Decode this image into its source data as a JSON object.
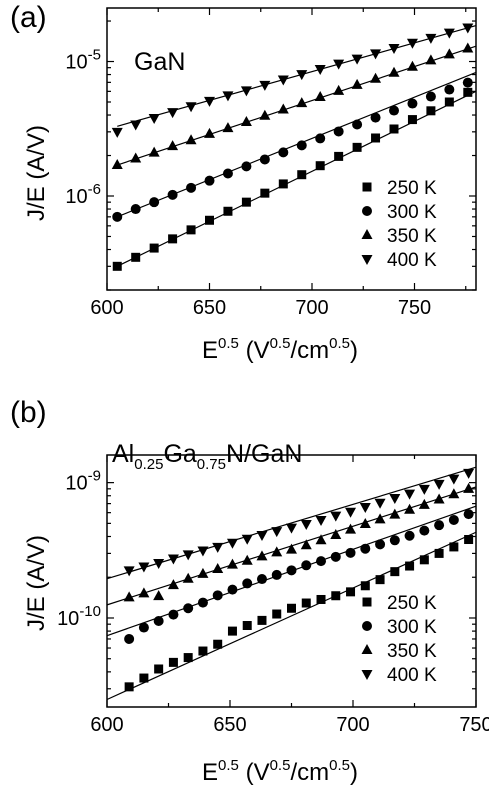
{
  "chart_data": [
    {
      "type": "scatter",
      "panel_label": "(a)",
      "material_label": "GaN",
      "xlabel": {
        "base": "E",
        "base_sup": "0.5",
        "units_open": "(V",
        "units_sup": "0.5",
        "units_mid": "/cm",
        "units_sup2": "0.5",
        "units_close": ")"
      },
      "ylabel": "J/E (A/V)",
      "xlim": [
        600,
        780
      ],
      "ylim": [
        2e-07,
        2.5e-05
      ],
      "yscale": "log",
      "x_ticks": [
        600,
        650,
        700,
        750
      ],
      "x_tick_labels": [
        "600",
        "650",
        "700",
        "750"
      ],
      "y_tick_labels": [
        {
          "mantissa": "10",
          "exp": "-6",
          "value": 1e-06
        },
        {
          "mantissa": "10",
          "exp": "-5",
          "value": 1e-05
        }
      ],
      "legend_position": "lower-right",
      "series": [
        {
          "name": "250 K",
          "marker": "square",
          "x": [
            605,
            614,
            623,
            632,
            641,
            650,
            659,
            668,
            677,
            686,
            695,
            704,
            713,
            722,
            731,
            740,
            749,
            758,
            767,
            776
          ],
          "y": [
            3e-07,
            3.5e-07,
            4.1e-07,
            4.8e-07,
            5.6e-07,
            6.6e-07,
            7.7e-07,
            9e-07,
            1.05e-06,
            1.23e-06,
            1.44e-06,
            1.68e-06,
            1.97e-06,
            2.3e-06,
            2.7e-06,
            3.15e-06,
            3.7e-06,
            4.3e-06,
            5e-06,
            5.9e-06
          ],
          "fit": [
            [
              605,
              3e-07
            ],
            [
              780,
              6e-06
            ]
          ]
        },
        {
          "name": "300 K",
          "marker": "circle",
          "x": [
            605,
            614,
            623,
            632,
            641,
            650,
            659,
            668,
            677,
            686,
            695,
            704,
            713,
            722,
            731,
            740,
            749,
            758,
            767,
            776
          ],
          "y": [
            7e-07,
            8e-07,
            9e-07,
            1.02e-06,
            1.15e-06,
            1.3e-06,
            1.47e-06,
            1.66e-06,
            1.87e-06,
            2.11e-06,
            2.38e-06,
            2.68e-06,
            3.02e-06,
            3.4e-06,
            3.83e-06,
            4.32e-06,
            4.87e-06,
            5.49e-06,
            6.19e-06,
            6.97e-06
          ],
          "fit": [
            [
              605,
              7e-07
            ],
            [
              780,
              8.3e-06
            ]
          ]
        },
        {
          "name": "350 K",
          "marker": "triangle-up",
          "x": [
            605,
            614,
            623,
            632,
            641,
            650,
            659,
            668,
            677,
            686,
            695,
            704,
            713,
            722,
            731,
            740,
            749,
            758,
            767,
            776
          ],
          "y": [
            1.7e-06,
            1.9e-06,
            2.1e-06,
            2.35e-06,
            2.6e-06,
            2.9e-06,
            3.2e-06,
            3.55e-06,
            3.95e-06,
            4.4e-06,
            4.9e-06,
            5.45e-06,
            6.05e-06,
            6.7e-06,
            7.45e-06,
            8.25e-06,
            9.15e-06,
            1.02e-05,
            1.13e-05,
            1.25e-05
          ],
          "fit": [
            [
              605,
              1.7e-06
            ],
            [
              780,
              1.3e-05
            ]
          ]
        },
        {
          "name": "400 K",
          "marker": "triangle-down",
          "x": [
            605,
            614,
            623,
            632,
            641,
            650,
            659,
            668,
            677,
            686,
            695,
            704,
            713,
            722,
            731,
            740,
            749,
            758,
            767,
            776
          ],
          "y": [
            3e-06,
            3.4e-06,
            3.8e-06,
            4.2e-06,
            4.65e-06,
            5.1e-06,
            5.6e-06,
            6.1e-06,
            6.7e-06,
            7.35e-06,
            8.05e-06,
            8.8e-06,
            9.65e-06,
            1.05e-05,
            1.15e-05,
            1.26e-05,
            1.38e-05,
            1.5e-05,
            1.64e-05,
            1.79e-05
          ],
          "fit": [
            [
              605,
              3.3e-06
            ],
            [
              780,
              1.85e-05
            ]
          ]
        }
      ]
    },
    {
      "type": "scatter",
      "panel_label": "(b)",
      "material_label": {
        "a": "Al",
        "a_sub": "0.25",
        "b": "Ga",
        "b_sub": "0.75",
        "c": "N/GaN"
      },
      "xlabel": {
        "base": "E",
        "base_sup": "0.5",
        "units_open": "(V",
        "units_sup": "0.5",
        "units_mid": "/cm",
        "units_sup2": "0.5",
        "units_close": ")"
      },
      "ylabel": "J/E (A/V)",
      "xlim": [
        600,
        750
      ],
      "ylim": [
        2.2e-11,
        1.6e-09
      ],
      "yscale": "log",
      "x_ticks": [
        600,
        650,
        700,
        750
      ],
      "x_tick_labels": [
        "600",
        "650",
        "700",
        "750"
      ],
      "y_tick_labels": [
        {
          "mantissa": "10",
          "exp": "-10",
          "value": 1e-10
        },
        {
          "mantissa": "10",
          "exp": "-9",
          "value": 1e-09
        }
      ],
      "legend_position": "lower-right",
      "series": [
        {
          "name": "250 K",
          "marker": "square",
          "x": [
            609,
            615,
            621,
            627,
            633,
            639,
            645,
            651,
            657,
            663,
            669,
            675,
            681,
            687,
            693,
            699,
            705,
            711,
            717,
            723,
            729,
            735,
            741,
            747
          ],
          "y": [
            3.1e-11,
            3.6e-11,
            4.2e-11,
            4.7e-11,
            5.1e-11,
            5.7e-11,
            6.4e-11,
            8e-11,
            8.8e-11,
            9.6e-11,
            1.07e-10,
            1.18e-10,
            1.29e-10,
            1.37e-10,
            1.46e-10,
            1.56e-10,
            1.73e-10,
            1.92e-10,
            2.2e-10,
            2.42e-10,
            2.69e-10,
            3e-10,
            3.35e-10,
            3.8e-10
          ],
          "fit": [
            [
              600,
              2.5e-11
            ],
            [
              750,
              4.3e-10
            ]
          ]
        },
        {
          "name": "300 K",
          "marker": "circle",
          "x": [
            609,
            615,
            621,
            627,
            633,
            639,
            645,
            651,
            657,
            663,
            669,
            675,
            681,
            687,
            693,
            699,
            705,
            711,
            717,
            723,
            729,
            735,
            741,
            747
          ],
          "y": [
            7e-11,
            8.5e-11,
            9.5e-11,
            1.06e-10,
            1.18e-10,
            1.3e-10,
            1.47e-10,
            1.62e-10,
            1.8e-10,
            1.94e-10,
            2.08e-10,
            2.25e-10,
            2.45e-10,
            2.63e-10,
            2.83e-10,
            3.03e-10,
            3.25e-10,
            3.5e-10,
            3.75e-10,
            4.05e-10,
            4.42e-10,
            4.85e-10,
            5.3e-10,
            5.85e-10
          ],
          "fit": [
            [
              600,
              7.4e-11
            ],
            [
              750,
              6.7e-10
            ]
          ]
        },
        {
          "name": "350 K",
          "marker": "triangle-up",
          "x": [
            609,
            615,
            621,
            627,
            633,
            639,
            645,
            651,
            657,
            663,
            669,
            675,
            681,
            687,
            693,
            699,
            705,
            711,
            717,
            723,
            729,
            735,
            741,
            747
          ],
          "y": [
            1.42e-10,
            1.52e-10,
            1.45e-10,
            1.75e-10,
            1.95e-10,
            2.12e-10,
            2.3e-10,
            2.48e-10,
            2.65e-10,
            2.85e-10,
            3.05e-10,
            3.2e-10,
            3.45e-10,
            3.75e-10,
            4.1e-10,
            4.5e-10,
            4.95e-10,
            5.35e-10,
            5.8e-10,
            6.3e-10,
            6.85e-10,
            7.5e-10,
            8.2e-10,
            9e-10
          ],
          "fit": [
            [
              600,
              1.25e-10
            ],
            [
              750,
              9.3e-10
            ]
          ]
        },
        {
          "name": "400 K",
          "marker": "triangle-down",
          "x": [
            609,
            615,
            621,
            627,
            633,
            639,
            645,
            651,
            657,
            663,
            669,
            675,
            681,
            687,
            693,
            699,
            705,
            711,
            717,
            723,
            729,
            735,
            741,
            747
          ],
          "y": [
            2.25e-10,
            2.4e-10,
            2.55e-10,
            2.75e-10,
            2.95e-10,
            3.15e-10,
            3.35e-10,
            3.6e-10,
            3.85e-10,
            4.1e-10,
            4.38e-10,
            4.65e-10,
            4.95e-10,
            5.3e-10,
            5.7e-10,
            6.1e-10,
            6.6e-10,
            7.1e-10,
            7.7e-10,
            8.3e-10,
            9e-10,
            9.8e-10,
            1.07e-09,
            1.18e-09
          ],
          "fit": [
            [
              600,
              1.95e-10
            ],
            [
              750,
              1.3e-09
            ]
          ]
        }
      ]
    }
  ]
}
